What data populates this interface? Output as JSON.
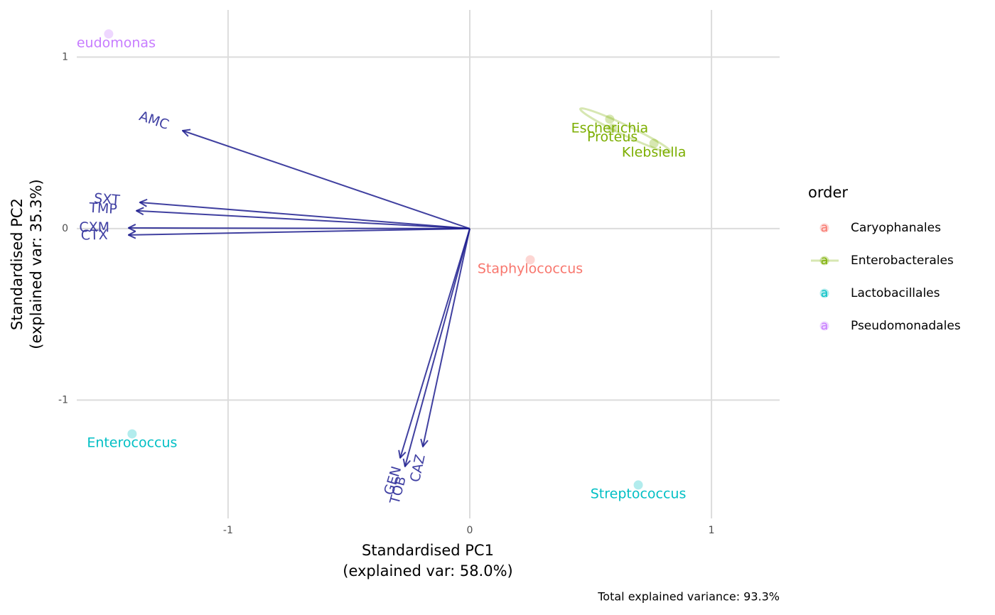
{
  "chart_data": {
    "type": "biplot",
    "xlabel": [
      "Standardised PC1",
      "(explained var: 58.0%)"
    ],
    "ylabel": [
      "Standardised PC2",
      "(explained var: 35.3%)"
    ],
    "caption": "Total explained variance: 93.3%",
    "legend_title": "order",
    "legend_key": "a",
    "xlim": [
      -1.626,
      1.282
    ],
    "ylim": [
      -1.69,
      1.275
    ],
    "xticks": [
      -1,
      0,
      1
    ],
    "yticks": [
      -1,
      0,
      1
    ],
    "grid": true,
    "series": [
      {
        "name": "Caryophanales",
        "color": "#F8766D",
        "labels": [
          "Staphylococcus"
        ],
        "x": [
          0.25
        ],
        "y": [
          -0.182
        ]
      },
      {
        "name": "Enterobacterales",
        "color": "#7CAE00",
        "ellipse": true,
        "labels": [
          "Escherichia",
          "Proteus",
          "Klebsiella"
        ],
        "x": [
          0.579,
          0.59,
          0.762
        ],
        "y": [
          0.638,
          0.585,
          0.497
        ]
      },
      {
        "name": "Lactobacillales",
        "color": "#00BFC4",
        "labels": [
          "Enterococcus",
          "Streptococcus"
        ],
        "x": [
          -1.397,
          0.697
        ],
        "y": [
          -1.197,
          -1.495
        ]
      },
      {
        "name": "Pseudomonadales",
        "color": "#C77CFF",
        "labels": [
          "Pseudomonas"
        ],
        "x": [
          -1.494
        ],
        "y": [
          1.135
        ]
      }
    ],
    "loadings": {
      "color": "#1f1f8f",
      "labels": [
        "AMC",
        "SXT",
        "TMP",
        "CXM",
        "CTX",
        "GEN",
        "TOB",
        "CAZ"
      ],
      "x": [
        -1.188,
        -1.365,
        -1.379,
        -1.412,
        -1.412,
        -0.288,
        -0.268,
        -0.194
      ],
      "y": [
        0.571,
        0.153,
        0.104,
        0.004,
        -0.037,
        -1.337,
        -1.387,
        -1.271
      ]
    }
  }
}
